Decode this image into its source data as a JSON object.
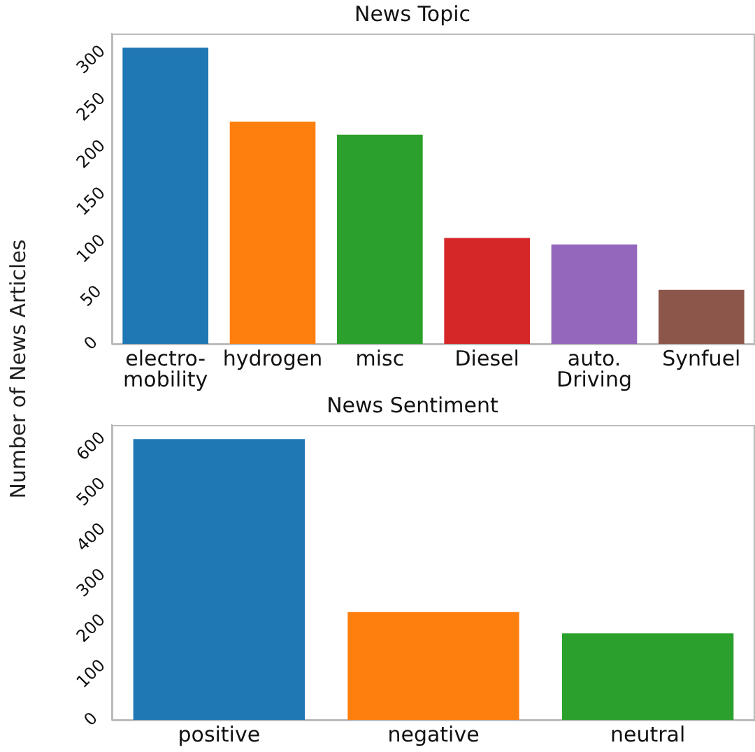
{
  "chart_data": [
    {
      "type": "bar",
      "title": "News Topic",
      "ylabel": "Number of News Articles",
      "categories": [
        "electro-mobility",
        "hydrogen",
        "misc",
        "Diesel",
        "auto. Driving",
        "Synfuel"
      ],
      "values": [
        313,
        235,
        221,
        112,
        105,
        57
      ],
      "colors": [
        "#1f77b4",
        "#ff7f0e",
        "#2ca02c",
        "#d62728",
        "#9467bd",
        "#8c564b"
      ],
      "ylim": [
        0,
        328
      ],
      "yticks": [
        0,
        50,
        100,
        150,
        200,
        250,
        300
      ],
      "grid": false,
      "legend": false
    },
    {
      "type": "bar",
      "title": "News Sentiment",
      "categories": [
        "positive",
        "negative",
        "neutral"
      ],
      "values": [
        617,
        237,
        190
      ],
      "colors": [
        "#1f77b4",
        "#ff7f0e",
        "#2ca02c"
      ],
      "ylim": [
        0,
        648
      ],
      "yticks": [
        0,
        100,
        200,
        300,
        400,
        500,
        600
      ],
      "grid": false,
      "legend": false
    }
  ]
}
